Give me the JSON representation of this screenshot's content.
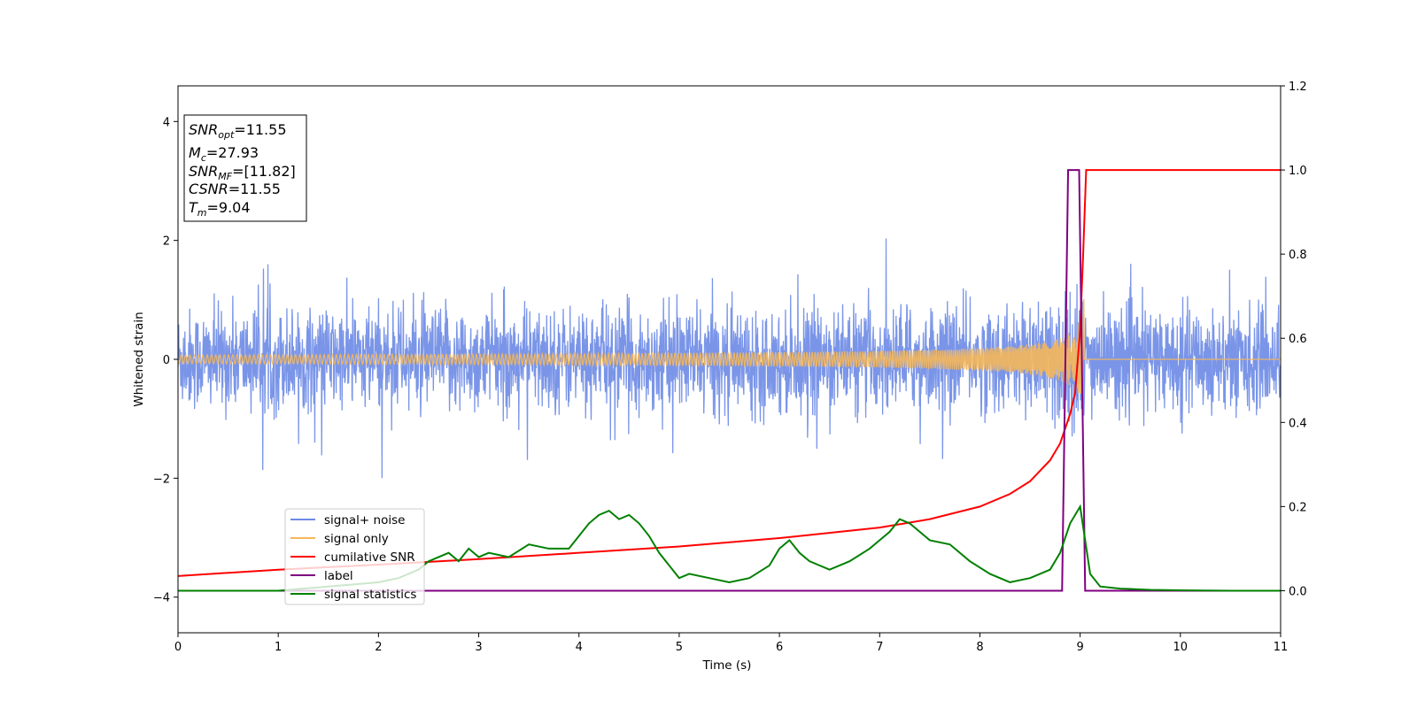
{
  "chart_data": {
    "type": "line",
    "xlabel": "Time (s)",
    "ylabel": "Whitened strain",
    "xlim": [
      0,
      11
    ],
    "ylim": [
      -4.6,
      4.6
    ],
    "y2lim": [
      -0.1,
      1.2
    ],
    "x_ticks": [
      0,
      1,
      2,
      3,
      4,
      5,
      6,
      7,
      8,
      9,
      10,
      11
    ],
    "y_ticks": [
      -4,
      -2,
      0,
      2,
      4
    ],
    "y_tick_labels": [
      "−4",
      "−2",
      "0",
      "2",
      "4"
    ],
    "y2_ticks": [
      0.0,
      0.2,
      0.4,
      0.6,
      0.8,
      1.0,
      1.2
    ],
    "y2_tick_labels": [
      "0.0",
      "0.2",
      "0.4",
      "0.6",
      "0.8",
      "1.0",
      "1.2"
    ],
    "grid": false,
    "legend_position": "lower-left",
    "legend": [
      "signal+ noise",
      "signal only",
      "cumilative SNR",
      "label",
      "signal statistics"
    ],
    "info_box": {
      "snr_opt": {
        "main": "SNR",
        "sub": "opt",
        "value": "=11.55"
      },
      "mc": {
        "main": "M",
        "sub": "c",
        "value": "=27.93"
      },
      "snr_mf": {
        "main": "SNR",
        "sub": "MF",
        "value": "=[11.82]"
      },
      "csnr": {
        "main": "CSNR",
        "value": "=11.55"
      },
      "tm": {
        "main": "T",
        "sub": "m",
        "value": "=9.04"
      }
    },
    "series": [
      {
        "name": "signal+ noise",
        "axis": "left",
        "color": "#6b8ae6",
        "kind": "noise",
        "amplitude_envelope": 1.2,
        "x_range": [
          0,
          11
        ]
      },
      {
        "name": "signal only",
        "axis": "left",
        "color": "#f5b75a",
        "kind": "chirp",
        "merger_time": 9.04,
        "peak_amplitude": 1.15
      },
      {
        "name": "cumilative SNR",
        "axis": "right",
        "color": "#ff0000",
        "x": [
          0,
          1,
          2,
          3,
          4,
          5,
          6,
          7,
          7.5,
          8,
          8.3,
          8.5,
          8.7,
          8.8,
          8.9,
          8.95,
          9.0,
          9.03,
          9.06,
          11
        ],
        "values": [
          0.035,
          0.05,
          0.062,
          0.075,
          0.09,
          0.105,
          0.125,
          0.15,
          0.17,
          0.2,
          0.23,
          0.26,
          0.31,
          0.35,
          0.42,
          0.47,
          0.62,
          0.8,
          1.0,
          1.0
        ]
      },
      {
        "name": "label",
        "axis": "right",
        "color": "#800080",
        "x": [
          0,
          8.82,
          8.88,
          8.99,
          9.05,
          11
        ],
        "values": [
          0,
          0,
          1,
          1,
          0,
          0
        ]
      },
      {
        "name": "signal statistics",
        "axis": "right",
        "color": "#008000",
        "x": [
          0,
          0.5,
          1,
          1.5,
          2,
          2.2,
          2.4,
          2.5,
          2.6,
          2.7,
          2.8,
          2.9,
          3.0,
          3.1,
          3.3,
          3.5,
          3.7,
          3.9,
          4.0,
          4.1,
          4.2,
          4.3,
          4.4,
          4.5,
          4.6,
          4.7,
          4.8,
          4.9,
          5.0,
          5.1,
          5.3,
          5.5,
          5.7,
          5.9,
          6.0,
          6.1,
          6.2,
          6.3,
          6.5,
          6.7,
          6.9,
          7.0,
          7.1,
          7.2,
          7.3,
          7.4,
          7.5,
          7.7,
          7.9,
          8.1,
          8.3,
          8.5,
          8.7,
          8.8,
          8.9,
          9.0,
          9.05,
          9.1,
          9.2,
          9.4,
          9.7,
          10,
          10.5,
          11
        ],
        "values": [
          0.0,
          0.0,
          0.0,
          0.01,
          0.02,
          0.03,
          0.05,
          0.07,
          0.08,
          0.09,
          0.07,
          0.1,
          0.08,
          0.09,
          0.08,
          0.11,
          0.1,
          0.1,
          0.13,
          0.16,
          0.18,
          0.19,
          0.17,
          0.18,
          0.16,
          0.13,
          0.09,
          0.06,
          0.03,
          0.04,
          0.03,
          0.02,
          0.03,
          0.06,
          0.1,
          0.12,
          0.09,
          0.07,
          0.05,
          0.07,
          0.1,
          0.12,
          0.14,
          0.17,
          0.16,
          0.14,
          0.12,
          0.11,
          0.07,
          0.04,
          0.02,
          0.03,
          0.05,
          0.09,
          0.16,
          0.2,
          0.12,
          0.04,
          0.01,
          0.005,
          0.002,
          0.001,
          0.0,
          0.0
        ]
      }
    ]
  }
}
